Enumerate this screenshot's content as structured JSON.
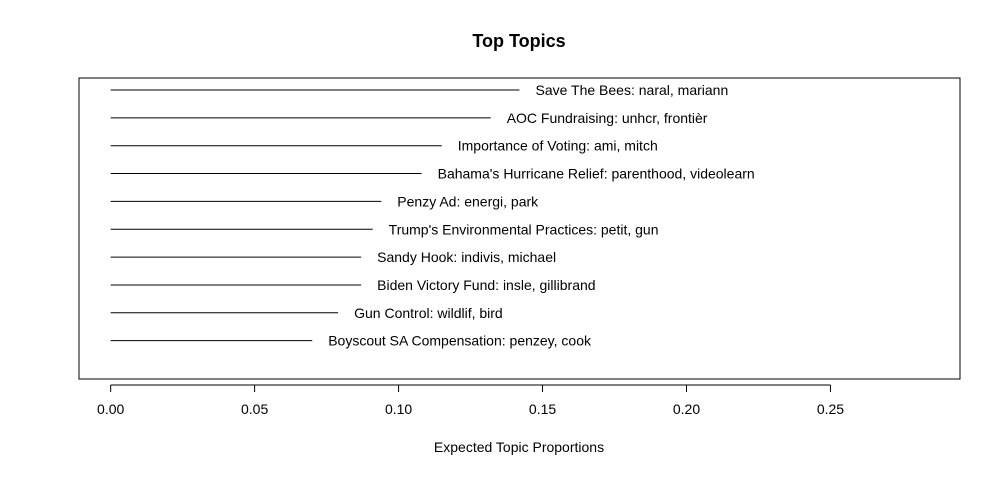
{
  "chart_data": {
    "type": "bar",
    "orientation": "horizontal",
    "title": "Top Topics",
    "xlabel": "Expected Topic Proportions",
    "ylabel": "",
    "xlim": [
      -0.011,
      0.295
    ],
    "xticks": [
      0.0,
      0.05,
      0.1,
      0.15,
      0.2,
      0.25
    ],
    "xtick_labels": [
      "0.00",
      "0.05",
      "0.10",
      "0.15",
      "0.20",
      "0.25"
    ],
    "grid": false,
    "categories": [
      "Save The Bees: naral, mariann",
      "AOC Fundraising: unhcr, frontièr",
      "Importance of Voting: ami, mitch",
      "Bahama's Hurricane Relief: parenthood, videolearn",
      "Penzy Ad: energi, park",
      "Trump's Environmental Practices: petit, gun",
      "Sandy Hook: indivis, michael",
      "Biden Victory Fund: insle, gillibrand",
      "Gun Control: wildlif, bird",
      "Boyscout SA Compensation: penzey, cook"
    ],
    "values": [
      0.142,
      0.132,
      0.115,
      0.108,
      0.094,
      0.091,
      0.087,
      0.087,
      0.079,
      0.07
    ],
    "colors": {
      "line": "#000000",
      "background": "#ffffff"
    }
  }
}
